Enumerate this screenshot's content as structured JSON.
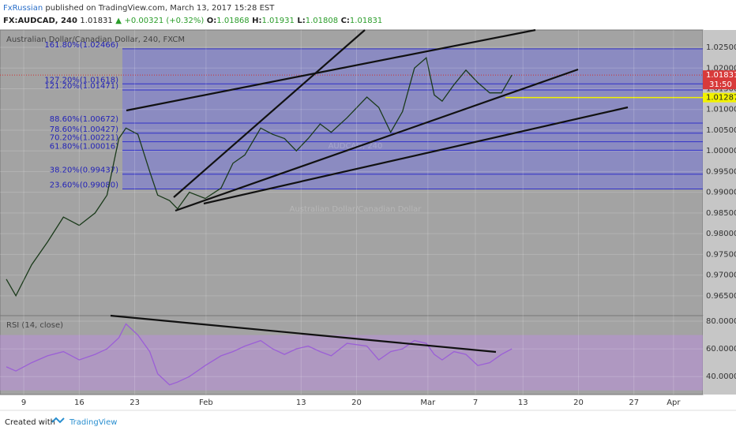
{
  "header": {
    "author": "FxRussian",
    "published": "published on TradingView.com, March 13, 2017 15:28 EST",
    "symbol": "FX:AUDCAD, 240",
    "last": "1.01831",
    "change": "+0.00321 (+0.32%)",
    "open_label": "O:",
    "open": "1.01868",
    "high_label": "H:",
    "high": "1.01931",
    "low_label": "L:",
    "low": "1.01808",
    "close_label": "C:",
    "close": "1.01831"
  },
  "chart_data": [
    {
      "type": "line",
      "title": "Australian Dollar/Canadian Dollar, 240, FXCM",
      "watermark": [
        "AUDCAD, 240",
        "Australian Dollar/Canadian Dollar"
      ],
      "color": "#1a3a1a",
      "x": [
        6.8,
        8.0,
        10.0,
        12.0,
        14.0,
        16.0,
        18.0,
        19.5,
        21.0,
        21.9,
        23.4,
        24.9,
        25.9,
        27.4,
        28.4,
        29.9,
        31.9,
        33.9,
        35.4,
        36.9,
        38.9,
        40.4,
        41.9,
        43.4,
        44.9,
        46.4,
        47.8,
        49.8,
        52.3,
        53.8,
        55.3,
        56.8,
        58.3,
        59.8,
        60.8,
        61.8,
        63.3,
        64.8,
        66.3,
        67.8,
        69.3,
        70.6
      ],
      "values": [
        0.969,
        0.965,
        0.9725,
        0.978,
        0.984,
        0.982,
        0.985,
        0.9893,
        1.003,
        1.0055,
        1.004,
        0.995,
        0.9893,
        0.988,
        0.986,
        0.99,
        0.9885,
        0.991,
        0.997,
        0.999,
        1.0055,
        1.004,
        1.003,
        1.0,
        1.003,
        1.0065,
        1.0045,
        1.008,
        1.013,
        1.0105,
        1.0045,
        1.0095,
        1.02,
        1.0225,
        1.0135,
        1.012,
        1.016,
        1.0195,
        1.0165,
        1.014,
        1.014,
        1.01831
      ],
      "xlim": [
        6.0,
        94.7
      ],
      "ylim": [
        0.9602,
        1.0292
      ],
      "yticks": [
        {
          "value": 1.025,
          "label": "1.02500"
        },
        {
          "value": 1.02,
          "label": "1.02000"
        },
        {
          "value": 1.015,
          "label": "1.01500"
        },
        {
          "value": 1.01,
          "label": "1.01000"
        },
        {
          "value": 1.005,
          "label": "1.00500"
        },
        {
          "value": 1.0,
          "label": "1.00000"
        },
        {
          "value": 0.995,
          "label": "0.99500"
        },
        {
          "value": 0.99,
          "label": "0.99000"
        },
        {
          "value": 0.985,
          "label": "0.98500"
        },
        {
          "value": 0.98,
          "label": "0.98000"
        },
        {
          "value": 0.975,
          "label": "0.97500"
        },
        {
          "value": 0.97,
          "label": "0.97000"
        },
        {
          "value": 0.965,
          "label": "0.96500"
        }
      ],
      "fib": [
        {
          "value": 1.02466,
          "label": "161.80%(1.02466)"
        },
        {
          "value": 1.01618,
          "label": "127.20%(1.01618)"
        },
        {
          "value": 1.01471,
          "label": "121.20%(1.01471)"
        },
        {
          "value": 1.00672,
          "label": "88.60%(1.00672)"
        },
        {
          "value": 1.00427,
          "label": "78.60%(1.00427)"
        },
        {
          "value": 1.00221,
          "label": "70.20%(1.00221)"
        },
        {
          "value": 1.00016,
          "label": "61.80%(1.00016)"
        },
        {
          "value": 0.99437,
          "label": "38.20%(0.99437)"
        },
        {
          "value": 0.9908,
          "label": "23.60%(0.99080)"
        }
      ],
      "last_price": {
        "value": 1.01831,
        "label": "1.01831"
      },
      "countdown": "31:50",
      "level": {
        "value": 1.01287,
        "label": "1.01287"
      }
    },
    {
      "type": "line",
      "title": "RSI (14, close)",
      "color": "#9b5fd6",
      "x": [
        6.8,
        8.0,
        10.0,
        12.0,
        14.0,
        16.0,
        18.0,
        19.5,
        21.0,
        21.9,
        23.4,
        24.9,
        25.9,
        27.4,
        28.4,
        29.9,
        31.9,
        33.9,
        35.4,
        36.9,
        38.9,
        40.4,
        41.9,
        43.4,
        44.9,
        46.4,
        47.8,
        49.8,
        52.3,
        53.8,
        55.3,
        56.8,
        58.3,
        59.8,
        60.8,
        61.8,
        63.3,
        64.8,
        66.3,
        67.8,
        69.3,
        70.6
      ],
      "values": [
        47,
        44,
        50,
        55,
        58,
        52,
        56,
        60,
        68,
        78,
        70,
        58,
        42,
        34,
        36,
        40,
        48,
        55,
        58,
        62,
        66,
        60,
        56,
        60,
        62,
        58,
        55,
        64,
        62,
        52,
        58,
        60,
        66,
        64,
        56,
        52,
        58,
        56,
        48,
        50,
        56,
        60
      ],
      "xlim": [
        6.0,
        94.7
      ],
      "ylim": [
        27,
        84
      ],
      "band": [
        30,
        70
      ],
      "yticks": [
        {
          "value": 80,
          "label": "80.0000"
        },
        {
          "value": 60,
          "label": "60.0000"
        },
        {
          "value": 40,
          "label": "40.0000"
        }
      ],
      "xticks": [
        {
          "value": 9,
          "label": "9"
        },
        {
          "value": 16,
          "label": "16"
        },
        {
          "value": 23,
          "label": "23"
        },
        {
          "value": 32,
          "label": "Feb"
        },
        {
          "value": 44,
          "label": "13"
        },
        {
          "value": 51,
          "label": "20"
        },
        {
          "value": 60,
          "label": "Mar"
        },
        {
          "value": 66,
          "label": "7"
        },
        {
          "value": 72,
          "label": "13"
        },
        {
          "value": 79,
          "label": "20"
        },
        {
          "value": 86,
          "label": "27"
        },
        {
          "value": 91,
          "label": "Apr"
        }
      ]
    }
  ],
  "footer": {
    "created": "Created with",
    "brand": "TradingView"
  }
}
